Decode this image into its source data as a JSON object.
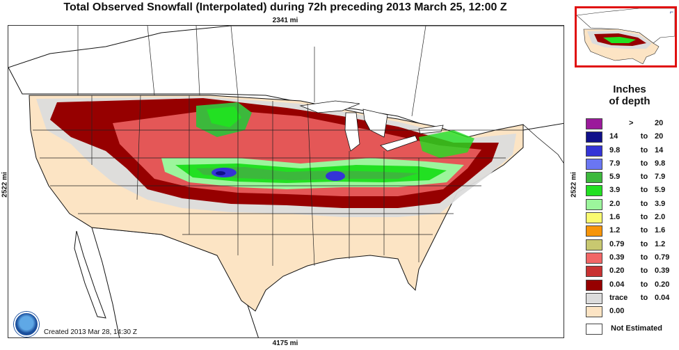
{
  "title": "Total Observed Snowfall (Interpolated) during 72h preceding 2013 March 25, 12:00 Z",
  "scale": {
    "top": "2341 mi",
    "bottom": "4175 mi",
    "left": "2522 mi",
    "right": "2522 mi"
  },
  "created": "Created 2013 Mar 28, 14:30 Z",
  "logo_label": "NOAA",
  "legend": {
    "title_line1": "Inches",
    "title_line2": "of depth",
    "not_estimated": "Not Estimated",
    "classes": [
      {
        "lo": ">",
        "to": "",
        "hi": "20",
        "color": "#9b1a9b"
      },
      {
        "lo": "14",
        "to": "to",
        "hi": "20",
        "color": "#10108a"
      },
      {
        "lo": "9.8",
        "to": "to",
        "hi": "14",
        "color": "#3434d6"
      },
      {
        "lo": "7.9",
        "to": "to",
        "hi": "9.8",
        "color": "#6a76f2"
      },
      {
        "lo": "5.9",
        "to": "to",
        "hi": "7.9",
        "color": "#3cb83c"
      },
      {
        "lo": "3.9",
        "to": "to",
        "hi": "5.9",
        "color": "#22e022"
      },
      {
        "lo": "2.0",
        "to": "to",
        "hi": "3.9",
        "color": "#9cf59c"
      },
      {
        "lo": "1.6",
        "to": "to",
        "hi": "2.0",
        "color": "#fafa70"
      },
      {
        "lo": "1.2",
        "to": "to",
        "hi": "1.6",
        "color": "#f7950a"
      },
      {
        "lo": "0.79",
        "to": "to",
        "hi": "1.2",
        "color": "#c8c870"
      },
      {
        "lo": "0.39",
        "to": "to",
        "hi": "0.79",
        "color": "#f26666"
      },
      {
        "lo": "0.20",
        "to": "to",
        "hi": "0.39",
        "color": "#c83232"
      },
      {
        "lo": "0.04",
        "to": "to",
        "hi": "0.20",
        "color": "#960000"
      },
      {
        "lo": "trace",
        "to": "to",
        "hi": "0.04",
        "color": "#dcdcdc"
      },
      {
        "lo": "0.00",
        "to": "",
        "hi": "",
        "color": "#fce4c4"
      }
    ]
  }
}
